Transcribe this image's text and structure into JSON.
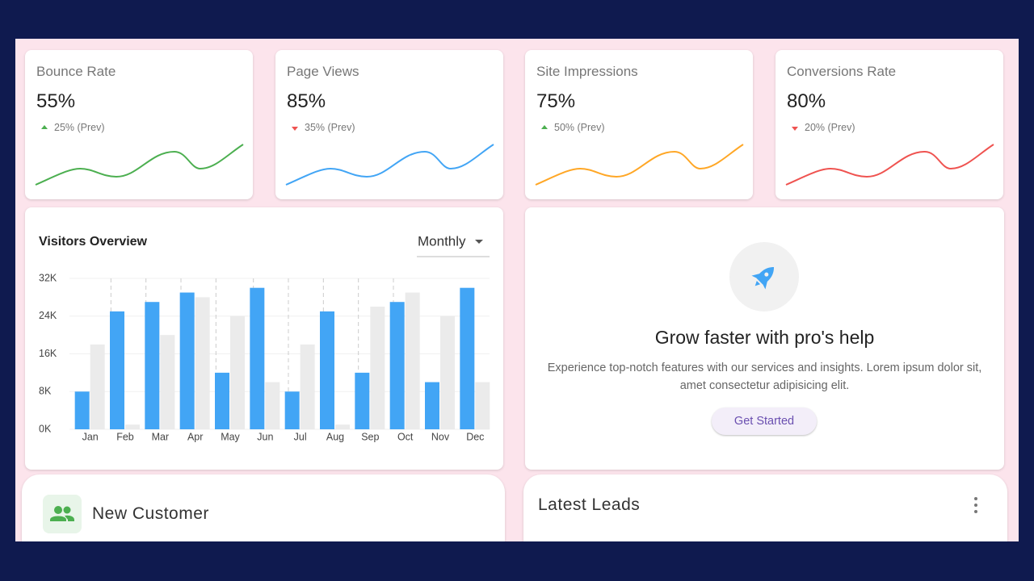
{
  "cards": [
    {
      "title": "Bounce Rate",
      "value": "55%",
      "change": "25% (Prev)",
      "trend": "up",
      "color": "#4caf50"
    },
    {
      "title": "Page Views",
      "value": "85%",
      "change": "35% (Prev)",
      "trend": "down",
      "color": "#42a5f5"
    },
    {
      "title": "Site Impressions",
      "value": "75%",
      "change": "50% (Prev)",
      "trend": "up",
      "color": "#ffa726"
    },
    {
      "title": "Conversions Rate",
      "value": "80%",
      "change": "20% (Prev)",
      "trend": "down",
      "color": "#ef5350"
    }
  ],
  "chart_data": {
    "type": "bar",
    "title": "Visitors Overview",
    "period": "Monthly",
    "categories": [
      "Jan",
      "Feb",
      "Mar",
      "Apr",
      "May",
      "Jun",
      "Jul",
      "Aug",
      "Sep",
      "Oct",
      "Nov",
      "Dec"
    ],
    "series": [
      {
        "color": "#42a5f5",
        "values": [
          8000,
          25000,
          27000,
          29000,
          12000,
          30000,
          8000,
          25000,
          12000,
          27000,
          10000,
          30000
        ]
      },
      {
        "color": "#ebebeb",
        "values": [
          18000,
          1000,
          20000,
          28000,
          24000,
          10000,
          18000,
          1000,
          26000,
          29000,
          24000,
          10000
        ]
      }
    ],
    "ylim": [
      0,
      32000
    ],
    "yticks": [
      {
        "value": 0,
        "label": "0K"
      },
      {
        "value": 8000,
        "label": "8K"
      },
      {
        "value": 16000,
        "label": "16K"
      },
      {
        "value": 24000,
        "label": "24K"
      },
      {
        "value": 32000,
        "label": "32K"
      }
    ],
    "grid": true
  },
  "promo": {
    "title": "Grow faster with pro's help",
    "text": "Experience top-notch features with our services and insights. Lorem ipsum dolor sit, amet consectetur adipisicing elit.",
    "button": "Get Started"
  },
  "new_customer": {
    "title": "New Customer"
  },
  "latest_leads": {
    "title": "Latest Leads"
  }
}
